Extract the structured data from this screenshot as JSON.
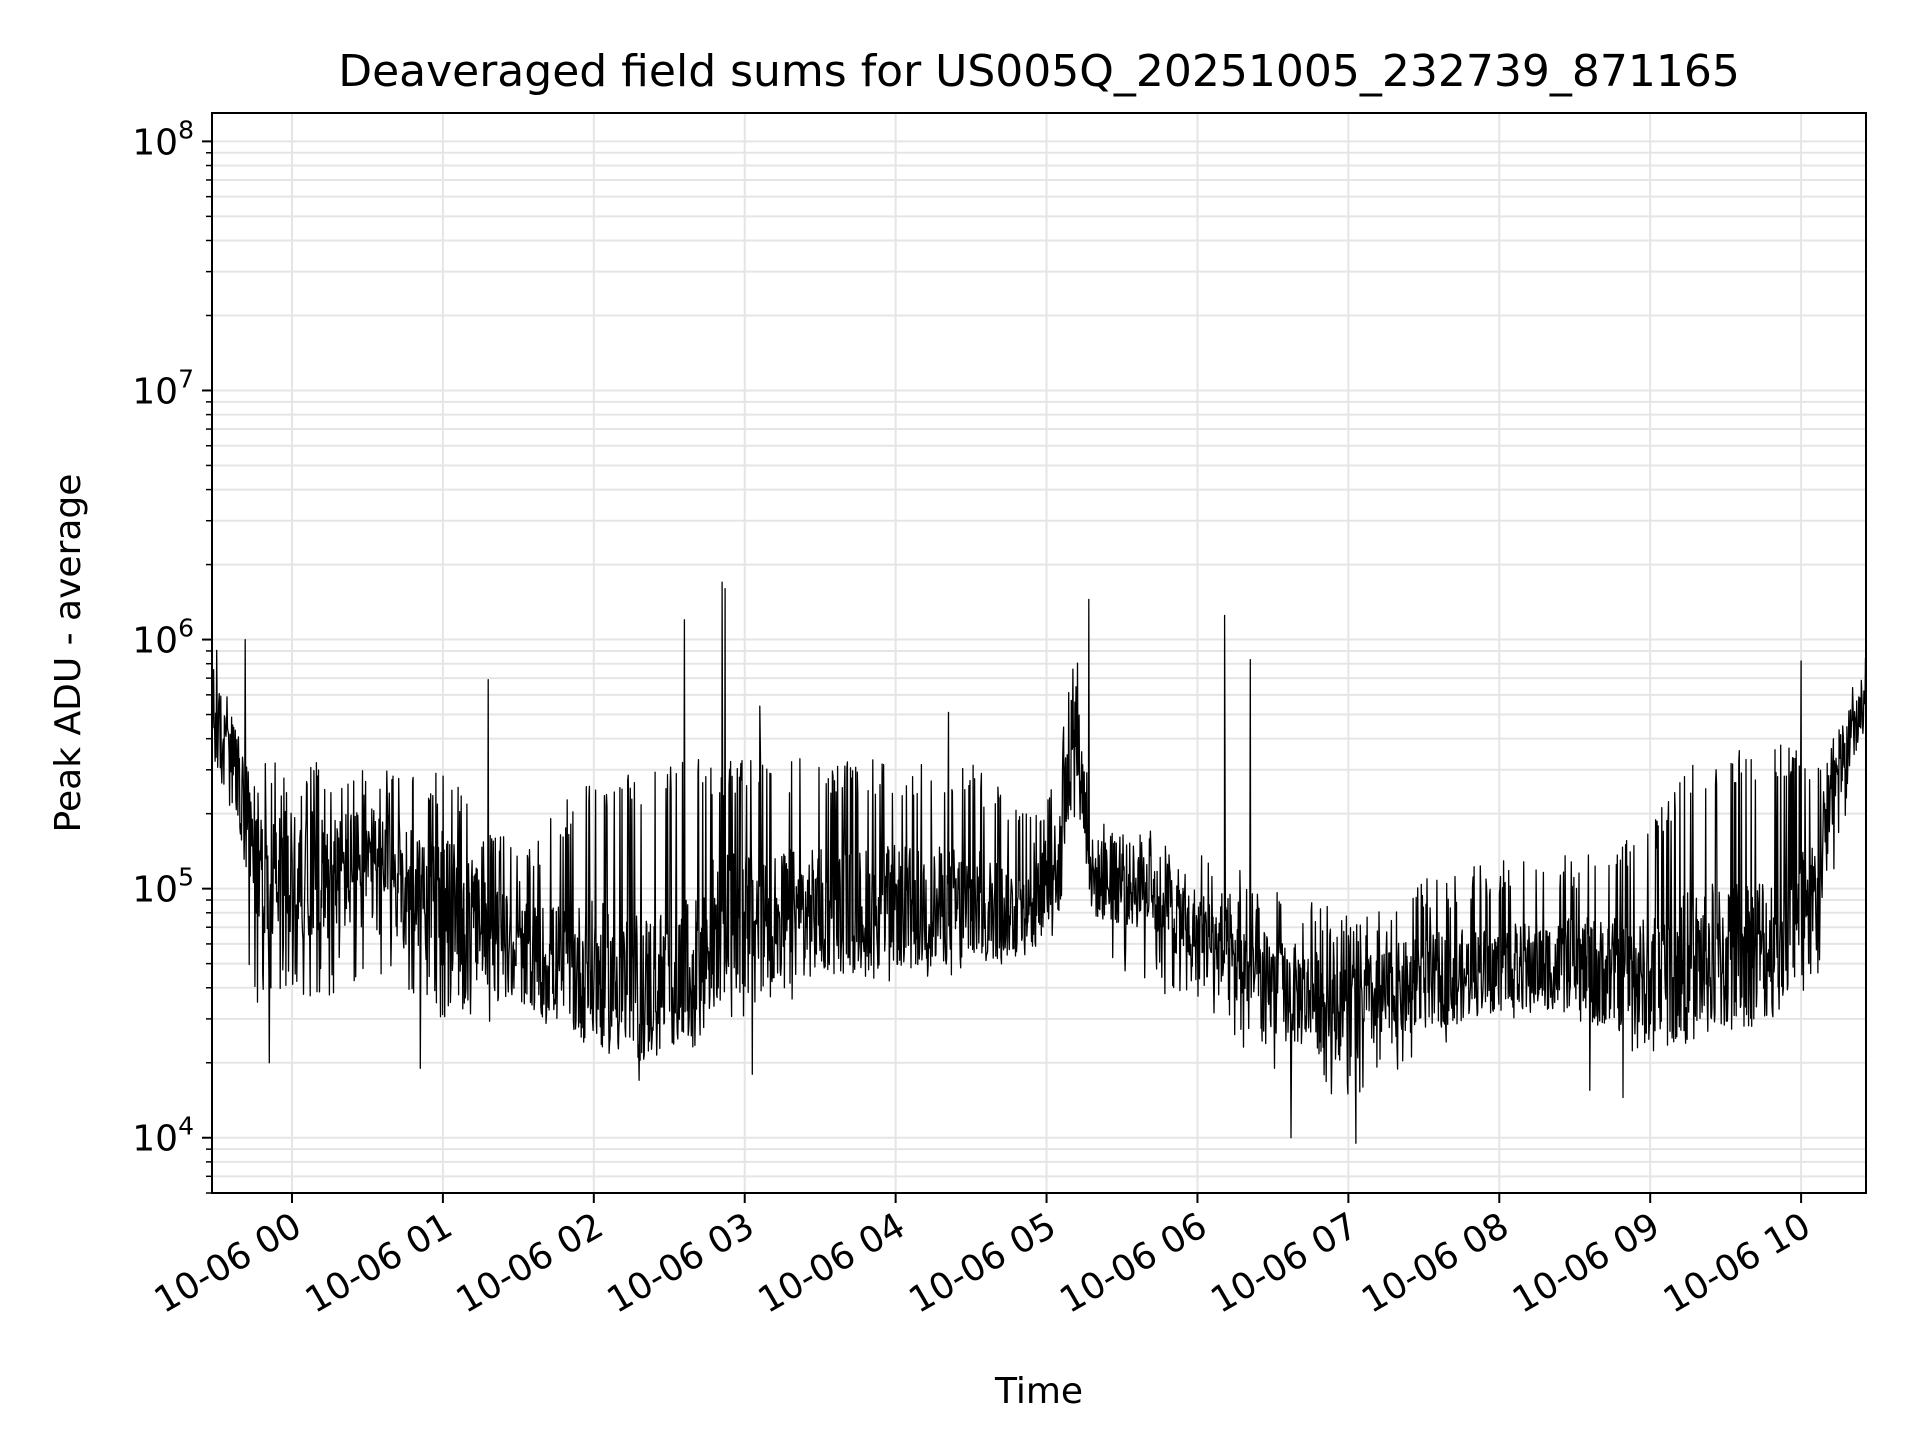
{
  "chart_data": {
    "type": "line",
    "title": "Deaveraged field sums for US005Q_20251005_232739_871165",
    "xlabel": "Time",
    "ylabel": "Peak ADU - average",
    "yscale": "log",
    "ylim": [
      6000,
      130000000
    ],
    "xlim_hours": [
      -0.53,
      10.43
    ],
    "x_ticks": [
      {
        "hour": 0,
        "label": "10-06 00"
      },
      {
        "hour": 1,
        "label": "10-06 01"
      },
      {
        "hour": 2,
        "label": "10-06 02"
      },
      {
        "hour": 3,
        "label": "10-06 03"
      },
      {
        "hour": 4,
        "label": "10-06 04"
      },
      {
        "hour": 5,
        "label": "10-06 05"
      },
      {
        "hour": 6,
        "label": "10-06 06"
      },
      {
        "hour": 7,
        "label": "10-06 07"
      },
      {
        "hour": 8,
        "label": "10-06 08"
      },
      {
        "hour": 9,
        "label": "10-06 09"
      },
      {
        "hour": 10,
        "label": "10-06 10"
      }
    ],
    "y_ticks": [
      {
        "value": 10000,
        "base": "10",
        "exp": "4"
      },
      {
        "value": 100000,
        "base": "10",
        "exp": "5"
      },
      {
        "value": 1000000,
        "base": "10",
        "exp": "6"
      },
      {
        "value": 10000000,
        "base": "10",
        "exp": "7"
      },
      {
        "value": 100000000,
        "base": "10",
        "exp": "8"
      }
    ],
    "grid": true,
    "line_color": "#000000",
    "grid_color": "#e5e5e5",
    "series": [
      {
        "name": "field sums",
        "envelope": {
          "hours": [
            -0.53,
            -0.45,
            -0.35,
            -0.25,
            0.0,
            0.5,
            1.0,
            1.5,
            2.0,
            2.3,
            2.7,
            2.8,
            3.0,
            3.5,
            4.0,
            4.5,
            4.9,
            5.05,
            5.2,
            5.3,
            5.7,
            6.0,
            6.5,
            7.0,
            7.5,
            8.0,
            8.5,
            9.0,
            9.3,
            9.8,
            10.1,
            10.2,
            10.43
          ],
          "median": [
            500000,
            350000,
            250000,
            120000,
            110000,
            120000,
            90000,
            55000,
            45000,
            40000,
            45000,
            70000,
            75000,
            80000,
            85000,
            85000,
            80000,
            120000,
            450000,
            110000,
            100000,
            65000,
            40000,
            32000,
            42000,
            48000,
            50000,
            42000,
            50000,
            60000,
            90000,
            250000,
            600000
          ],
          "low": [
            200000,
            150000,
            60000,
            35000,
            35000,
            40000,
            30000,
            27000,
            25000,
            23000,
            24000,
            26000,
            30000,
            38000,
            42000,
            45000,
            50000,
            60000,
            200000,
            55000,
            40000,
            30000,
            18000,
            14000,
            22000,
            30000,
            30000,
            20000,
            25000,
            28000,
            40000,
            100000,
            400000
          ],
          "high": [
            1200000,
            650000,
            450000,
            330000,
            330000,
            320000,
            300000,
            140000,
            300000,
            300000,
            330000,
            330000,
            340000,
            330000,
            330000,
            330000,
            200000,
            300000,
            1000000,
            220000,
            170000,
            150000,
            100000,
            80000,
            110000,
            130000,
            140000,
            180000,
            350000,
            380000,
            380000,
            450000,
            950000
          ]
        },
        "spikes": [
          {
            "hour": -0.53,
            "value": 1250000
          },
          {
            "hour": -0.31,
            "value": 1000000
          },
          {
            "hour": 1.3,
            "value": 690000
          },
          {
            "hour": 2.6,
            "value": 1200000
          },
          {
            "hour": 2.85,
            "value": 1700000
          },
          {
            "hour": 2.87,
            "value": 1600000
          },
          {
            "hour": 3.1,
            "value": 540000
          },
          {
            "hour": 4.35,
            "value": 510000
          },
          {
            "hour": 5.28,
            "value": 1450000
          },
          {
            "hour": 6.18,
            "value": 1250000
          },
          {
            "hour": 6.35,
            "value": 830000
          },
          {
            "hour": 10.0,
            "value": 820000
          }
        ],
        "dips": [
          {
            "hour": 0.85,
            "value": 19000
          },
          {
            "hour": -0.15,
            "value": 20000
          },
          {
            "hour": 2.3,
            "value": 17000
          },
          {
            "hour": 3.05,
            "value": 18000
          },
          {
            "hour": 6.62,
            "value": 10000
          },
          {
            "hour": 7.05,
            "value": 9500
          },
          {
            "hour": 8.6,
            "value": 15500
          },
          {
            "hour": 8.82,
            "value": 14500
          }
        ]
      }
    ]
  }
}
